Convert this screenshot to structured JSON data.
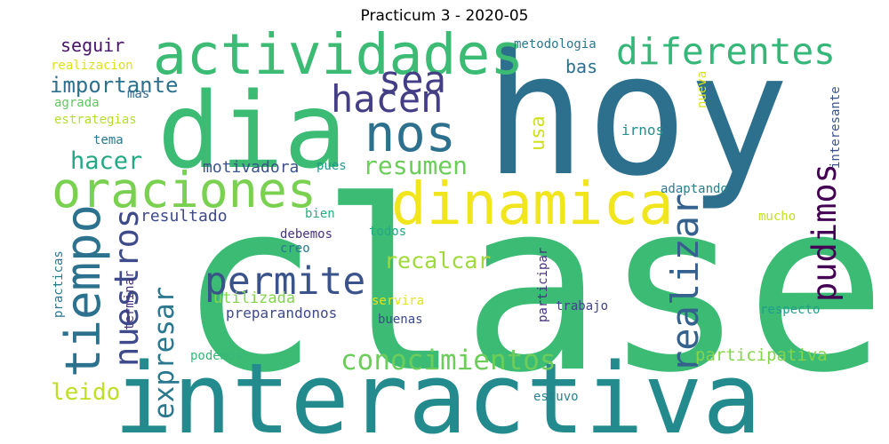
{
  "title": "Practicum 3 - 2020-05",
  "words": [
    {
      "text": "clase",
      "color": "#3cbb75"
    },
    {
      "text": "hoy",
      "color": "#2d708e"
    },
    {
      "text": "interactiva",
      "color": "#238a8d"
    },
    {
      "text": "dia",
      "color": "#3cbb75"
    },
    {
      "text": "actividades",
      "color": "#3cbb75"
    },
    {
      "text": "dinamica",
      "color": "#f1e51d"
    },
    {
      "text": "oraciones",
      "color": "#7ad151"
    },
    {
      "text": "tiempo",
      "color": "#2c728e"
    },
    {
      "text": "nos",
      "color": "#2d708e"
    },
    {
      "text": "sea",
      "color": "#433e85"
    },
    {
      "text": "hacen",
      "color": "#433e85"
    },
    {
      "text": "diferentes",
      "color": "#35b779"
    },
    {
      "text": "permite",
      "color": "#3a538b"
    },
    {
      "text": "realizar",
      "color": "#34618d"
    },
    {
      "text": "nuestros",
      "color": "#3e4a89"
    },
    {
      "text": "pudimos",
      "color": "#440154"
    },
    {
      "text": "expresar",
      "color": "#2a788e"
    },
    {
      "text": "conocimientos",
      "color": "#6ccd5a"
    },
    {
      "text": "resumen",
      "color": "#6ccd5a"
    },
    {
      "text": "importante",
      "color": "#2c728e"
    },
    {
      "text": "hacer",
      "color": "#22a884"
    },
    {
      "text": "recalcar",
      "color": "#a0da39"
    },
    {
      "text": "leido",
      "color": "#bddf26"
    },
    {
      "text": "seguir",
      "color": "#481467"
    },
    {
      "text": "bas",
      "color": "#2d708e"
    },
    {
      "text": "usa",
      "color": "#d0e11c"
    },
    {
      "text": "motivadora",
      "color": "#3b528b"
    },
    {
      "text": "resultado",
      "color": "#3e4a89"
    },
    {
      "text": "utilizada",
      "color": "#84d44b"
    },
    {
      "text": "participativa",
      "color": "#84d44b"
    },
    {
      "text": "preparandonos",
      "color": "#3e4a89"
    },
    {
      "text": "metodologia",
      "color": "#2a788e"
    },
    {
      "text": "realizacion",
      "color": "#dde318"
    },
    {
      "text": "mas",
      "color": "#31688e"
    },
    {
      "text": "agrada",
      "color": "#5ec962"
    },
    {
      "text": "estrategias",
      "color": "#b5de2b"
    },
    {
      "text": "tema",
      "color": "#2a788e"
    },
    {
      "text": "pues",
      "color": "#1f988b"
    },
    {
      "text": "irnos",
      "color": "#21918c"
    },
    {
      "text": "nueva",
      "color": "#dde318"
    },
    {
      "text": "interesante",
      "color": "#3b528b"
    },
    {
      "text": "adaptando",
      "color": "#287d8e"
    },
    {
      "text": "bien",
      "color": "#27ad81"
    },
    {
      "text": "debemos",
      "color": "#46327e"
    },
    {
      "text": "creo",
      "color": "#2a788e"
    },
    {
      "text": "todos",
      "color": "#22a884"
    },
    {
      "text": "mucho",
      "color": "#c2df23"
    },
    {
      "text": "practicas",
      "color": "#2a788e"
    },
    {
      "text": "terminar",
      "color": "#46327e"
    },
    {
      "text": "participar",
      "color": "#46327e"
    },
    {
      "text": "trabajo",
      "color": "#404387"
    },
    {
      "text": "servira",
      "color": "#e2e418"
    },
    {
      "text": "buenas",
      "color": "#3e4a89"
    },
    {
      "text": "respecto",
      "color": "#1f9e89"
    },
    {
      "text": "podemos",
      "color": "#35b779"
    },
    {
      "text": "estuvo",
      "color": "#26828e"
    }
  ]
}
